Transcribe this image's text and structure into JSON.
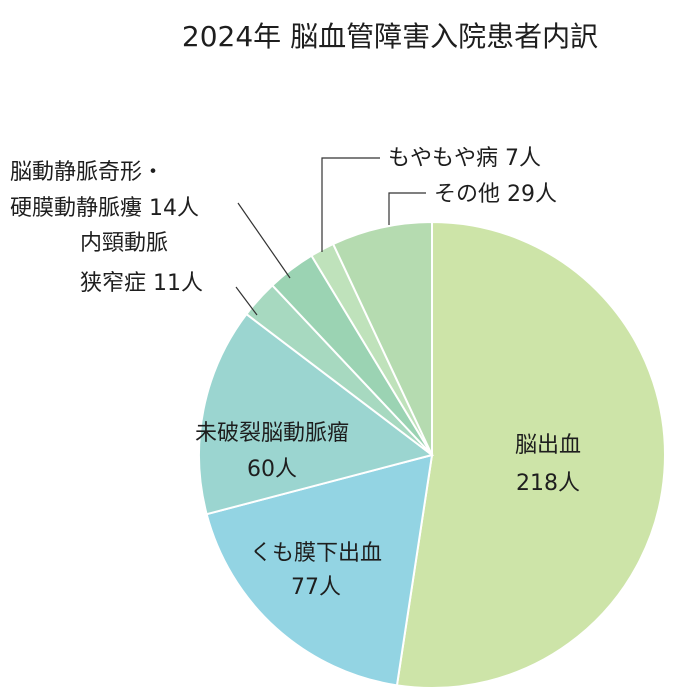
{
  "chart_data": {
    "type": "pie",
    "title": "2024年 脳血管障害入院患者内訳",
    "unit": "人",
    "slices": [
      {
        "label": "脳出血",
        "value": 218,
        "value_text": "218人",
        "color": "#cde4a8"
      },
      {
        "label": "くも膜下出血",
        "value": 77,
        "value_text": "77人",
        "color": "#93d4e3"
      },
      {
        "label": "未破裂脳動脈瘤",
        "value": 60,
        "value_text": "60人",
        "color": "#9bd5d0"
      },
      {
        "label": "内頸動脈狭窄症",
        "label_lines": [
          "内頸動脈",
          "狭窄症 11人"
        ],
        "value": 11,
        "value_text": "11人",
        "color": "#a7d9c0"
      },
      {
        "label": "脳動静脈奇形・硬膜動静脈瘻",
        "label_lines": [
          "脳動静脈奇形・",
          "硬膜動静脈瘻 14人"
        ],
        "value": 14,
        "value_text": "14人",
        "color": "#9bd3b3"
      },
      {
        "label": "もやもや病",
        "label_text": "もやもや病 7人",
        "value": 7,
        "value_text": "7人",
        "color": "#bfe2bb"
      },
      {
        "label": "その他",
        "label_text": "その他 29人",
        "value": 29,
        "value_text": "29人",
        "color": "#b5dbb0"
      }
    ]
  }
}
